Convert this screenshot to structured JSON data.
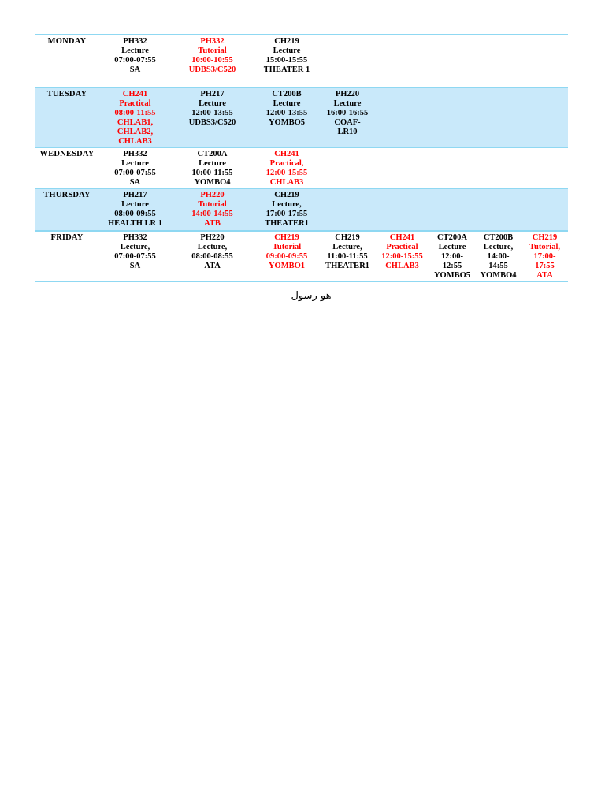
{
  "page": {
    "footnote": "هو رسول"
  },
  "colors": {
    "highlight_row_bg": "#c9e9fa",
    "row_border": "#8fd8f2",
    "text_black": "#000000",
    "text_red": "#ff0000"
  },
  "timetable": {
    "rows": [
      {
        "day": "MONDAY",
        "highlighted": false,
        "cells": [
          {
            "col": 1,
            "red": false,
            "lines": [
              "PH332",
              "Lecture",
              "07:00-07:55",
              "SA"
            ]
          },
          {
            "col": 2,
            "red": true,
            "lines": [
              "PH332",
              "Tutorial",
              "10:00-10:55",
              "UDBS3/C520"
            ]
          },
          {
            "col": 3,
            "red": false,
            "lines": [
              "CH219",
              "Lecture",
              "15:00-15:55",
              "THEATER 1"
            ]
          }
        ]
      },
      {
        "day": "TUESDAY",
        "highlighted": true,
        "cells": [
          {
            "col": 1,
            "red": true,
            "lines": [
              "CH241",
              "Practical",
              "08:00-11:55",
              "CHLAB1,",
              "CHLAB2,",
              "CHLAB3"
            ]
          },
          {
            "col": 2,
            "red": false,
            "lines": [
              "PH217",
              "Lecture",
              "12:00-13:55",
              "UDBS3/C520"
            ]
          },
          {
            "col": 3,
            "red": false,
            "lines": [
              "CT200B",
              "Lecture",
              "12:00-13:55",
              "YOMBO5"
            ]
          },
          {
            "col": 4,
            "red": false,
            "lines": [
              "PH220",
              "Lecture",
              "16:00-16:55",
              "COAF-",
              "LR10"
            ]
          }
        ]
      },
      {
        "day": "WEDNESDAY",
        "highlighted": false,
        "cells": [
          {
            "col": 1,
            "red": false,
            "lines": [
              "PH332",
              "Lecture",
              "07:00-07:55",
              "SA"
            ]
          },
          {
            "col": 2,
            "red": false,
            "lines": [
              "CT200A",
              "Lecture",
              "10:00-11:55",
              "YOMBO4"
            ]
          },
          {
            "col": 3,
            "red": true,
            "lines": [
              "CH241",
              "Practical,",
              "12:00-15:55",
              "CHLAB3"
            ]
          }
        ]
      },
      {
        "day": "THURSDAY",
        "highlighted": true,
        "cells": [
          {
            "col": 1,
            "red": false,
            "lines": [
              "PH217",
              "Lecture",
              "08:00-09:55",
              "HEALTH LR 1"
            ]
          },
          {
            "col": 2,
            "red": true,
            "lines": [
              "PH220",
              "Tutorial",
              "14:00-14:55",
              "ATB"
            ]
          },
          {
            "col": 3,
            "red": false,
            "lines": [
              "CH219",
              "Lecture,",
              "17:00-17:55",
              "THEATER1"
            ]
          }
        ]
      },
      {
        "day": "FRIDAY",
        "highlighted": false,
        "cells": [
          {
            "col": 1,
            "red": false,
            "lines": [
              "PH332",
              "Lecture,",
              "07:00-07:55",
              "SA"
            ]
          },
          {
            "col": 2,
            "red": false,
            "lines": [
              "PH220",
              "Lecture,",
              "08:00-08:55",
              "ATA"
            ]
          },
          {
            "col": 3,
            "red": true,
            "lines": [
              "CH219",
              "Tutorial",
              "09:00-09:55",
              "YOMBO1"
            ]
          },
          {
            "col": 4,
            "red": false,
            "lines": [
              "CH219",
              "Lecture,",
              "11:00-11:55",
              "THEATER1"
            ]
          },
          {
            "col": 5,
            "red": true,
            "lines": [
              "CH241",
              "Practical",
              "12:00-15:55",
              "CHLAB3"
            ]
          },
          {
            "col": 6,
            "red": false,
            "lines": [
              "CT200A",
              "Lecture",
              "12:00-",
              "12:55",
              "YOMBO5"
            ]
          },
          {
            "col": 7,
            "red": false,
            "lines": [
              "CT200B",
              "Lecture,",
              "14:00-",
              "14:55",
              "YOMBO4"
            ]
          },
          {
            "col": 8,
            "red": true,
            "lines": [
              "CH219",
              "Tutorial,",
              "17:00-",
              "17:55",
              "ATA"
            ]
          }
        ]
      }
    ]
  }
}
